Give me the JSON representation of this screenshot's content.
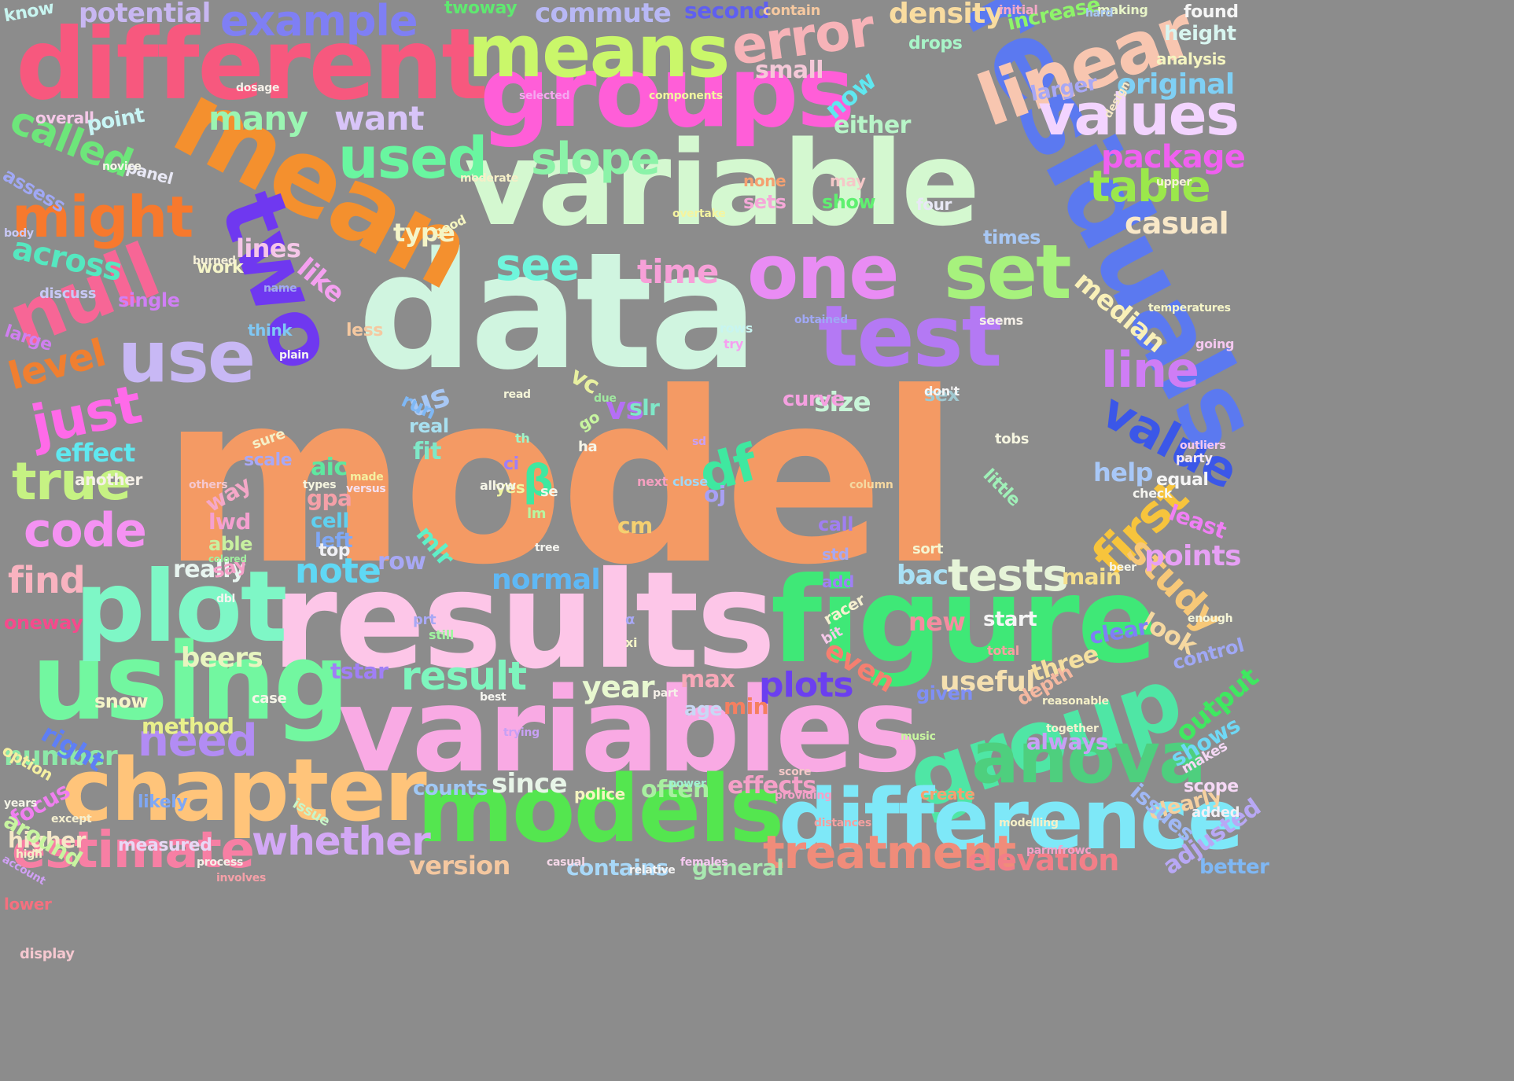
{
  "background": "#8c8c8c",
  "words": [
    {
      "text": "model",
      "color": "#f49a64"
    },
    {
      "text": "data",
      "color": "#d0f5e0"
    },
    {
      "text": "results",
      "color": "#fdc6e8"
    },
    {
      "text": "variable",
      "color": "#d4f8d0"
    },
    {
      "text": "variables",
      "color": "#f9aae4"
    },
    {
      "text": "figure",
      "color": "#3fe877"
    },
    {
      "text": "residuals",
      "color": "#5b79f0"
    },
    {
      "text": "different",
      "color": "#f7587e"
    },
    {
      "text": "groups",
      "color": "#ff5ed8"
    },
    {
      "text": "mean",
      "color": "#f4902e"
    },
    {
      "text": "using",
      "color": "#72f7a0"
    },
    {
      "text": "plot",
      "color": "#7ef7c6"
    },
    {
      "text": "models",
      "color": "#54e64f"
    },
    {
      "text": "chapter",
      "color": "#ffc47a"
    },
    {
      "text": "group",
      "color": "#4fe6a5"
    },
    {
      "text": "difference",
      "color": "#7ee8f8"
    },
    {
      "text": "two",
      "color": "#6f38f0"
    },
    {
      "text": "test",
      "color": "#b479f4"
    },
    {
      "text": "one",
      "color": "#e98cf4"
    },
    {
      "text": "set",
      "color": "#a7f27d"
    },
    {
      "text": "means",
      "color": "#caf76a"
    },
    {
      "text": "linear",
      "color": "#f8c6b0"
    },
    {
      "text": "use",
      "color": "#c8b8f5"
    },
    {
      "text": "null",
      "color": "#f76696"
    },
    {
      "text": "anova",
      "color": "#4ecf7e"
    },
    {
      "text": "values",
      "color": "#f3d4ff"
    },
    {
      "text": "might",
      "color": "#f7792d"
    },
    {
      "text": "used",
      "color": "#69f6a0"
    },
    {
      "text": "error",
      "color": "#f7b3b8"
    },
    {
      "text": "estimate",
      "color": "#f77fa4"
    },
    {
      "text": "value",
      "color": "#3b57e8"
    },
    {
      "text": "line",
      "color": "#cf7df5"
    },
    {
      "text": "just",
      "color": "#ff6ae9"
    },
    {
      "text": "true",
      "color": "#c6f283"
    },
    {
      "text": "code",
      "color": "#f592f3"
    },
    {
      "text": "first",
      "color": "#f7c43c"
    },
    {
      "text": "treatment",
      "color": "#f08c7a"
    },
    {
      "text": "tests",
      "color": "#e6f4d8"
    },
    {
      "text": "whether",
      "color": "#d3a8f5"
    },
    {
      "text": "need",
      "color": "#b28cf4"
    },
    {
      "text": "slope",
      "color": "#8bf3a8"
    },
    {
      "text": "see",
      "color": "#6ff5dc"
    },
    {
      "text": "table",
      "color": "#9be84b"
    },
    {
      "text": "example",
      "color": "#7f7ff4"
    },
    {
      "text": "note",
      "color": "#5fd8f5"
    },
    {
      "text": "result",
      "color": "#7ef5be"
    },
    {
      "text": "study",
      "color": "#f7c878"
    },
    {
      "text": "want",
      "color": "#d8c4f8"
    },
    {
      "text": "many",
      "color": "#9bf5b2"
    },
    {
      "text": "called",
      "color": "#6de67a"
    },
    {
      "text": "time",
      "color": "#f7a0d8"
    },
    {
      "text": "package",
      "color": "#f060f0"
    },
    {
      "text": "level",
      "color": "#f07f30"
    },
    {
      "text": "plots",
      "color": "#6b3ff0"
    },
    {
      "text": "casual",
      "color": "#f9e8c8"
    },
    {
      "text": "across",
      "color": "#55e8c0"
    },
    {
      "text": "find",
      "color": "#f9b3c0"
    },
    {
      "text": "potential",
      "color": "#c8b7f2"
    },
    {
      "text": "commute",
      "color": "#b8b8f5"
    },
    {
      "text": "density",
      "color": "#f9dca0"
    },
    {
      "text": "elevation",
      "color": "#f27f88"
    },
    {
      "text": "median",
      "color": "#f9f0b8"
    },
    {
      "text": "points",
      "color": "#e7a0f5"
    },
    {
      "text": "original",
      "color": "#7fd0f5"
    },
    {
      "text": "height",
      "color": "#d8f5f0"
    },
    {
      "text": "lines",
      "color": "#f5c6e8"
    },
    {
      "text": "like",
      "color": "#f5a0f0"
    },
    {
      "text": "effect",
      "color": "#5fe8f0"
    },
    {
      "text": "number",
      "color": "#8ce8a8"
    },
    {
      "text": "year",
      "color": "#e8f8d0"
    },
    {
      "text": "since",
      "color": "#e8f5e8"
    },
    {
      "text": "us",
      "color": "#a8c8f5"
    },
    {
      "text": "vs",
      "color": "#b56ff5"
    },
    {
      "text": "size",
      "color": "#c8f5d8"
    },
    {
      "text": "df",
      "color": "#3fe8a0"
    },
    {
      "text": "useful",
      "color": "#f5e0b0"
    },
    {
      "text": "help",
      "color": "#a8c8f8"
    },
    {
      "text": "beers",
      "color": "#e8f5c0"
    },
    {
      "text": "really",
      "color": "#e8f5f0"
    },
    {
      "text": "max",
      "color": "#f7a8b8"
    },
    {
      "text": "normal",
      "color": "#5fb8f5"
    },
    {
      "text": "bac",
      "color": "#a8e0f5"
    },
    {
      "text": "main",
      "color": "#f5e08c"
    },
    {
      "text": "contains",
      "color": "#a8d8f8"
    },
    {
      "text": "version",
      "color": "#f5c8a0"
    },
    {
      "text": "general",
      "color": "#a8e8b0"
    },
    {
      "text": "higher",
      "color": "#f5e8c8"
    },
    {
      "text": "measured",
      "color": "#e8d8f5"
    },
    {
      "text": "method",
      "color": "#e8f08c"
    },
    {
      "text": "often",
      "color": "#a8f0a0"
    },
    {
      "text": "effects",
      "color": "#f5a0c8"
    },
    {
      "text": "counts",
      "color": "#a0c8f5"
    },
    {
      "text": "police",
      "color": "#f5f5c0"
    },
    {
      "text": "create",
      "color": "#f5a070"
    },
    {
      "text": "always",
      "color": "#c8a0f5"
    },
    {
      "text": "three",
      "color": "#f5e0a0"
    },
    {
      "text": "given",
      "color": "#7f8ff5"
    },
    {
      "text": "output",
      "color": "#3fe860"
    },
    {
      "text": "shows",
      "color": "#6fd8f5"
    },
    {
      "text": "clearly",
      "color": "#f5d0a0"
    },
    {
      "text": "adjusted",
      "color": "#b8a8f5"
    },
    {
      "text": "better",
      "color": "#7fb8f5"
    },
    {
      "text": "β",
      "color": "#3fe8a0"
    },
    {
      "text": "se",
      "color": "#f5f5e8"
    },
    {
      "text": "lm",
      "color": "#b8f5a0"
    },
    {
      "text": "ci",
      "color": "#a07ff5"
    },
    {
      "text": "oj",
      "color": "#a8a0f5"
    },
    {
      "text": "aic",
      "color": "#5fe8a0"
    },
    {
      "text": "gpa",
      "color": "#f5a0a8"
    },
    {
      "text": "cell",
      "color": "#5fd0f0"
    },
    {
      "text": "left",
      "color": "#7fa8f5"
    },
    {
      "text": "lwd",
      "color": "#f5a0d0"
    },
    {
      "text": "able",
      "color": "#c8f0a0"
    },
    {
      "text": "way",
      "color": "#f5a8c8"
    },
    {
      "text": "fit",
      "color": "#7fe8c8"
    },
    {
      "text": "real",
      "color": "#a8e0f0"
    },
    {
      "text": "run",
      "color": "#7fb8f5"
    },
    {
      "text": "slr",
      "color": "#7fe8c8"
    },
    {
      "text": "vc",
      "color": "#e8f0a0"
    },
    {
      "text": "mlr",
      "color": "#5ff0c8"
    },
    {
      "text": "row",
      "color": "#a8a8f5"
    },
    {
      "text": "cm",
      "color": "#f5d070"
    },
    {
      "text": "tstar",
      "color": "#a07ff5"
    },
    {
      "text": "curve",
      "color": "#f5a0e0"
    },
    {
      "text": "sex",
      "color": "#a0c8d0"
    },
    {
      "text": "small",
      "color": "#f5c8d8"
    },
    {
      "text": "now",
      "color": "#5fe8f0"
    },
    {
      "text": "either",
      "color": "#b8f5c8"
    },
    {
      "text": "drops",
      "color": "#a8f5c8"
    },
    {
      "text": "increase",
      "color": "#8ef56a"
    },
    {
      "text": "analysis",
      "color": "#f5f5c0"
    },
    {
      "text": "larger",
      "color": "#a8a8f5"
    },
    {
      "text": "times",
      "color": "#a8c8f5"
    },
    {
      "text": "four",
      "color": "#e8e8f5"
    },
    {
      "text": "may",
      "color": "#f5c8c8"
    },
    {
      "text": "show",
      "color": "#5ff070"
    },
    {
      "text": "sets",
      "color": "#f5a8d8"
    },
    {
      "text": "none",
      "color": "#f5a070"
    },
    {
      "text": "second",
      "color": "#5f5ff0"
    },
    {
      "text": "twoway",
      "color": "#5fe870"
    },
    {
      "text": "know",
      "color": "#c8f5f0"
    },
    {
      "text": "overall",
      "color": "#f5c8e8"
    },
    {
      "text": "point",
      "color": "#c8f5f5"
    },
    {
      "text": "panel",
      "color": "#e8e8f5"
    },
    {
      "text": "assess",
      "color": "#a0a8f5"
    },
    {
      "text": "work",
      "color": "#f5f5c8"
    },
    {
      "text": "discuss",
      "color": "#c8c8f5"
    },
    {
      "text": "single",
      "color": "#d07ff5"
    },
    {
      "text": "large",
      "color": "#d07ff0"
    },
    {
      "text": "less",
      "color": "#f5c8a0"
    },
    {
      "text": "think",
      "color": "#7fc8f5"
    },
    {
      "text": "type",
      "color": "#f5f5c8"
    },
    {
      "text": "good",
      "color": "#f5f5c0"
    },
    {
      "text": "sure",
      "color": "#f5f0c8"
    },
    {
      "text": "scale",
      "color": "#a8a8f5"
    },
    {
      "text": "another",
      "color": "#f5f0e8"
    },
    {
      "text": "oneway",
      "color": "#f54a8c"
    },
    {
      "text": "right",
      "color": "#5f7ff5"
    },
    {
      "text": "focus",
      "color": "#f07ff0"
    },
    {
      "text": "around",
      "color": "#c8f5a0"
    },
    {
      "text": "option",
      "color": "#f5f0a0"
    },
    {
      "text": "likely",
      "color": "#7fa8f5"
    },
    {
      "text": "lower",
      "color": "#f5707f"
    },
    {
      "text": "display",
      "color": "#f5c8d0"
    },
    {
      "text": "don't",
      "color": "#f5f5f5"
    },
    {
      "text": "tobs",
      "color": "#f5f5e0"
    },
    {
      "text": "equal",
      "color": "#f5f5f5"
    },
    {
      "text": "least",
      "color": "#f07ff5"
    },
    {
      "text": "check",
      "color": "#f5f5f0"
    },
    {
      "text": "party",
      "color": "#f5e8f5"
    },
    {
      "text": "little",
      "color": "#a0f0b8"
    },
    {
      "text": "call",
      "color": "#a07ff0"
    },
    {
      "text": "std",
      "color": "#a8a8f0"
    },
    {
      "text": "add",
      "color": "#a07ff5"
    },
    {
      "text": "new",
      "color": "#f58ca0"
    },
    {
      "text": "start",
      "color": "#f5f5f5"
    },
    {
      "text": "sort",
      "color": "#f5f5d0"
    },
    {
      "text": "even",
      "color": "#f57f70"
    },
    {
      "text": "depth",
      "color": "#f5b8a0"
    },
    {
      "text": "look",
      "color": "#f5d8a0"
    },
    {
      "text": "issues",
      "color": "#a0b8f5"
    },
    {
      "text": "min",
      "color": "#f57f60"
    },
    {
      "text": "age",
      "color": "#c8d8f5"
    },
    {
      "text": "top",
      "color": "#f0f0f5"
    },
    {
      "text": "say",
      "color": "#f5a0c8"
    },
    {
      "text": "case",
      "color": "#f5f5e8"
    },
    {
      "text": "yes",
      "color": "#f0f5a0"
    },
    {
      "text": "clear",
      "color": "#7f7ff5"
    },
    {
      "text": "control",
      "color": "#a0a8f5"
    },
    {
      "text": "scope",
      "color": "#f5d8f5"
    },
    {
      "text": "makes",
      "color": "#f5d8f5"
    },
    {
      "text": "added",
      "color": "#f5f0f5"
    },
    {
      "text": "going",
      "color": "#f5c8f0"
    },
    {
      "text": "found",
      "color": "#f5f5f5"
    },
    {
      "text": "making",
      "color": "#e8f5c8"
    },
    {
      "text": "initial",
      "color": "#f5a8c8"
    },
    {
      "text": "contain",
      "color": "#f5c8a0"
    },
    {
      "text": "components",
      "color": "#f0f5a0"
    },
    {
      "text": "selected",
      "color": "#f5a8f0"
    },
    {
      "text": "dosage",
      "color": "#f5f0e8"
    },
    {
      "text": "design",
      "color": "#f5e8c8"
    },
    {
      "text": "hard",
      "color": "#a8c8f5"
    },
    {
      "text": "upper",
      "color": "#f5f0d8"
    },
    {
      "text": "body",
      "color": "#c8c8f5"
    },
    {
      "text": "novice",
      "color": "#f5f5e8"
    },
    {
      "text": "moderate",
      "color": "#f5f0c8"
    },
    {
      "text": "overtake",
      "color": "#f5f5a0"
    },
    {
      "text": "burned",
      "color": "#f5f0d8"
    },
    {
      "text": "name",
      "color": "#a0a8f5"
    },
    {
      "text": "rows",
      "color": "#c8f5f0"
    },
    {
      "text": "obtained",
      "color": "#a0a8f5"
    },
    {
      "text": "seems",
      "color": "#f5f0e8"
    },
    {
      "text": "try",
      "color": "#f5a0f0"
    },
    {
      "text": "read",
      "color": "#f5f5d8"
    },
    {
      "text": "plain",
      "color": "#f5f5f0"
    },
    {
      "text": "due",
      "color": "#a0e8a0"
    },
    {
      "text": "go",
      "color": "#c8f5a0"
    },
    {
      "text": "th",
      "color": "#a0f5c8"
    },
    {
      "text": "ha",
      "color": "#f5f5e8"
    },
    {
      "text": "sd",
      "color": "#c8a0f5"
    },
    {
      "text": "types",
      "color": "#f5f5e0"
    },
    {
      "text": "made",
      "color": "#f5f0a0"
    },
    {
      "text": "versus",
      "color": "#f5e0f0"
    },
    {
      "text": "allow",
      "color": "#f5f5e8"
    },
    {
      "text": "others",
      "color": "#f5c8d0"
    },
    {
      "text": "next",
      "color": "#f5a0c0"
    },
    {
      "text": "close",
      "color": "#a0d8f5"
    },
    {
      "text": "column",
      "color": "#f5d8a0"
    },
    {
      "text": "colored",
      "color": "#a0f0a0"
    },
    {
      "text": "dbl",
      "color": "#f5f5f0"
    },
    {
      "text": "racer",
      "color": "#f5f0d0"
    },
    {
      "text": "bit",
      "color": "#f5c8e8"
    },
    {
      "text": "tree",
      "color": "#f5f5f0"
    },
    {
      "text": "still",
      "color": "#a0f5a0"
    },
    {
      "text": "prt",
      "color": "#a8a8f5"
    },
    {
      "text": "xi",
      "color": "#f5f5c8"
    },
    {
      "text": "α",
      "color": "#a8a8f5"
    },
    {
      "text": "part",
      "color": "#f5f0e8"
    },
    {
      "text": "best",
      "color": "#f5f5f0"
    },
    {
      "text": "issue",
      "color": "#c8f5c8"
    },
    {
      "text": "except",
      "color": "#f5f0d0"
    },
    {
      "text": "high",
      "color": "#f5f0c8"
    },
    {
      "text": "years",
      "color": "#f5f5e8"
    },
    {
      "text": "account",
      "color": "#d0a0f5"
    },
    {
      "text": "distances",
      "color": "#f5a0a0"
    },
    {
      "text": "females",
      "color": "#f5c8f0"
    },
    {
      "text": "casual",
      "color": "#f5d8e8"
    },
    {
      "text": "power",
      "color": "#a0f0d0"
    },
    {
      "text": "snow",
      "color": "#f5f5c8"
    },
    {
      "text": "total",
      "color": "#f5a0a0"
    },
    {
      "text": "temperatures",
      "color": "#f5f5c8"
    },
    {
      "text": "outliers",
      "color": "#f5c8f0"
    },
    {
      "text": "enough",
      "color": "#f5f5d8"
    },
    {
      "text": "beer",
      "color": "#f5f5e8"
    },
    {
      "text": "reasonable",
      "color": "#f5f0c8"
    },
    {
      "text": "together",
      "color": "#f5f0d0"
    },
    {
      "text": "music",
      "color": "#c8f5a0"
    },
    {
      "text": "score",
      "color": "#f5c8c8"
    },
    {
      "text": "providing",
      "color": "#f5a0c8"
    },
    {
      "text": "process",
      "color": "#f5f0e8"
    },
    {
      "text": "relative",
      "color": "#f5f5f5"
    },
    {
      "text": "involves",
      "color": "#f5a0a8"
    },
    {
      "text": "modelling",
      "color": "#f5f0c8"
    },
    {
      "text": "parmfrowc",
      "color": "#f5a0c8"
    },
    {
      "text": "trying",
      "color": "#c8a0f5"
    }
  ]
}
